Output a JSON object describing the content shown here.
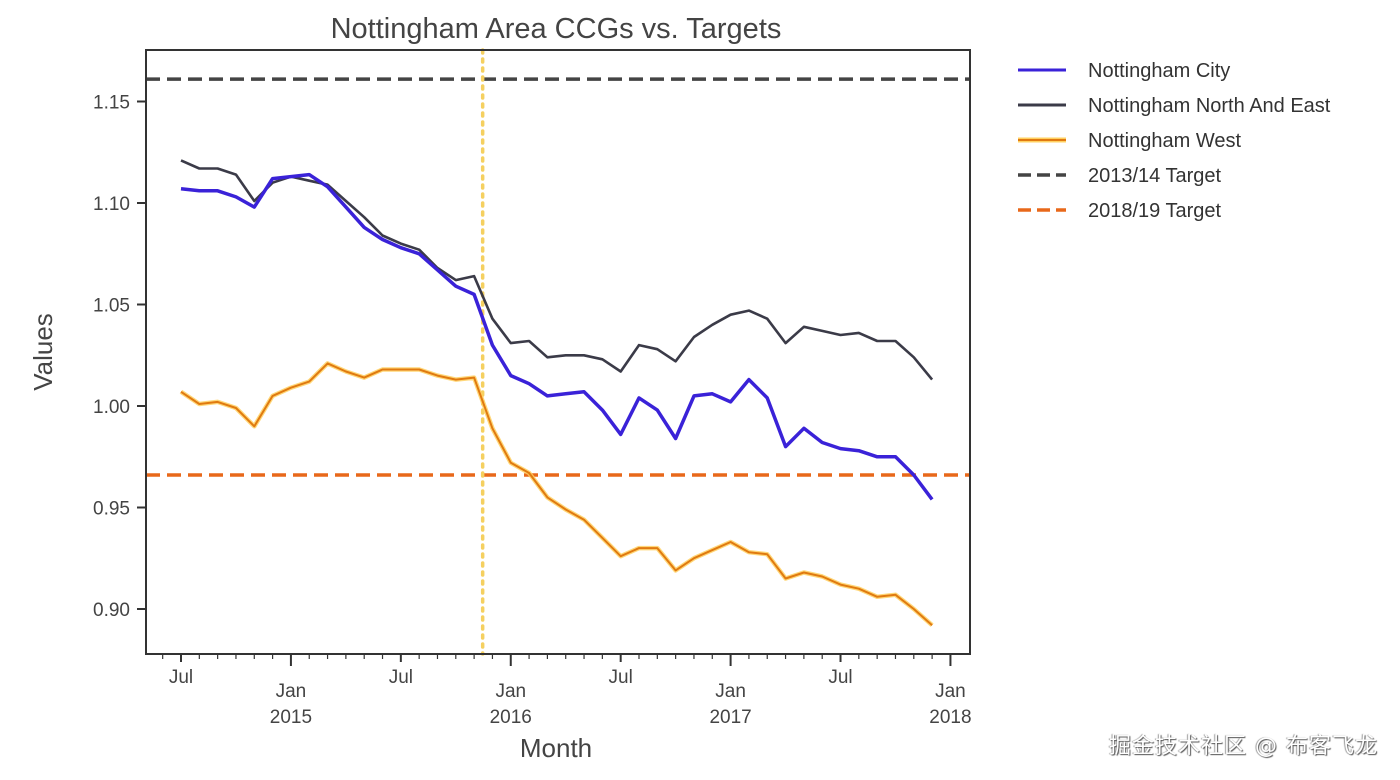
{
  "chart_data": {
    "type": "line",
    "title": "Nottingham Area CCGs vs. Targets",
    "xlabel": "Month",
    "ylabel": "Values",
    "ylim": [
      0.878,
      1.167
    ],
    "xlim": [
      "2014-06",
      "2018-01"
    ],
    "grid": false,
    "legend_position": "outside-top-right",
    "yticks": [
      0.9,
      0.95,
      1.0,
      1.05,
      1.1,
      1.15
    ],
    "ytick_labels": [
      "0.90",
      "0.95",
      "1.00",
      "1.05",
      "1.10",
      "1.15"
    ],
    "xticks": [
      {
        "month": "2014-07",
        "label": "Jul",
        "sublabel": ""
      },
      {
        "month": "2015-01",
        "label": "Jan",
        "sublabel": "2015"
      },
      {
        "month": "2015-07",
        "label": "Jul",
        "sublabel": ""
      },
      {
        "month": "2016-01",
        "label": "Jan",
        "sublabel": "2016"
      },
      {
        "month": "2016-07",
        "label": "Jul",
        "sublabel": ""
      },
      {
        "month": "2017-01",
        "label": "Jan",
        "sublabel": "2017"
      },
      {
        "month": "2017-07",
        "label": "Jul",
        "sublabel": ""
      },
      {
        "month": "2018-01",
        "label": "Jan",
        "sublabel": "2018"
      }
    ],
    "x": [
      "2014-07",
      "2014-08",
      "2014-09",
      "2014-10",
      "2014-11",
      "2014-12",
      "2015-01",
      "2015-02",
      "2015-03",
      "2015-04",
      "2015-05",
      "2015-06",
      "2015-07",
      "2015-08",
      "2015-09",
      "2015-10",
      "2015-11",
      "2015-12",
      "2016-01",
      "2016-02",
      "2016-03",
      "2016-04",
      "2016-05",
      "2016-06",
      "2016-07",
      "2016-08",
      "2016-09",
      "2016-10",
      "2016-11",
      "2016-12",
      "2017-01",
      "2017-02",
      "2017-03",
      "2017-04",
      "2017-05",
      "2017-06",
      "2017-07",
      "2017-08",
      "2017-09",
      "2017-10",
      "2017-11",
      "2017-12"
    ],
    "series": [
      {
        "name": "Nottingham City",
        "color": "#3a22d8",
        "style": "solid",
        "values": [
          1.107,
          1.106,
          1.106,
          1.103,
          1.098,
          1.112,
          1.113,
          1.114,
          1.108,
          1.098,
          1.088,
          1.082,
          1.078,
          1.075,
          1.067,
          1.059,
          1.055,
          1.03,
          1.015,
          1.011,
          1.005,
          1.006,
          1.007,
          0.998,
          0.986,
          1.004,
          0.998,
          0.984,
          1.005,
          1.006,
          1.002,
          1.013,
          1.004,
          0.98,
          0.989,
          0.982,
          0.979,
          0.978,
          0.975,
          0.975,
          0.966,
          0.954
        ]
      },
      {
        "name": "Nottingham North And East",
        "color": "#3b3b48",
        "style": "solid",
        "values": [
          1.121,
          1.117,
          1.117,
          1.114,
          1.101,
          1.11,
          1.113,
          1.111,
          1.109,
          1.101,
          1.093,
          1.084,
          1.08,
          1.077,
          1.068,
          1.062,
          1.064,
          1.043,
          1.031,
          1.032,
          1.024,
          1.025,
          1.025,
          1.023,
          1.017,
          1.03,
          1.028,
          1.022,
          1.034,
          1.04,
          1.045,
          1.047,
          1.043,
          1.031,
          1.039,
          1.037,
          1.035,
          1.036,
          1.032,
          1.032,
          1.024,
          1.013
        ]
      },
      {
        "name": "Nottingham West",
        "color": "#f0a020",
        "style": "solid",
        "values": [
          1.007,
          1.001,
          1.002,
          0.999,
          0.99,
          1.005,
          1.009,
          1.012,
          1.021,
          1.017,
          1.014,
          1.018,
          1.018,
          1.018,
          1.015,
          1.013,
          1.014,
          0.989,
          0.972,
          0.967,
          0.955,
          0.949,
          0.944,
          0.935,
          0.926,
          0.93,
          0.93,
          0.919,
          0.925,
          0.929,
          0.933,
          0.928,
          0.927,
          0.915,
          0.918,
          0.916,
          0.912,
          0.91,
          0.906,
          0.907,
          0.9,
          0.892
        ]
      }
    ],
    "reference_lines": [
      {
        "name": "2013/14 Target",
        "orientation": "horizontal",
        "value": 1.161,
        "color": "#444444",
        "style": "dashed"
      },
      {
        "name": "2018/19 Target",
        "orientation": "horizontal",
        "value": 0.966,
        "color": "#e8681a",
        "style": "dashed"
      },
      {
        "name": "",
        "orientation": "vertical",
        "value": "2015-11-15",
        "color": "#f5d060",
        "style": "dotted"
      }
    ]
  },
  "legend": [
    {
      "label": "Nottingham City",
      "color": "#3a22d8",
      "style": "solid"
    },
    {
      "label": "Nottingham North And East",
      "color": "#3b3b48",
      "style": "solid"
    },
    {
      "label": "Nottingham West",
      "color": "#f0a020",
      "style": "solid"
    },
    {
      "label": "2013/14 Target",
      "color": "#444444",
      "style": "dashed"
    },
    {
      "label": "2018/19 Target",
      "color": "#e8681a",
      "style": "dashed"
    }
  ],
  "watermark": "掘金技术社区 @ 布客飞龙"
}
